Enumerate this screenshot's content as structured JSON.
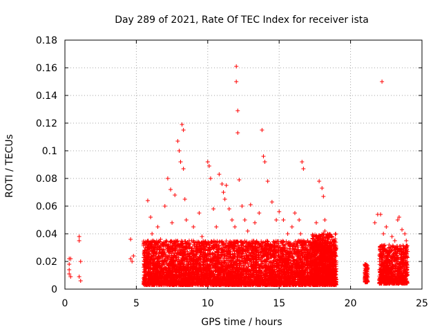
{
  "chart_data": {
    "type": "scatter",
    "title": "Day 289 of 2021, Rate Of TEC Index for receiver ista",
    "xlabel": "GPS time / hours",
    "ylabel": "ROTI / TECUs",
    "xlim": [
      0,
      25
    ],
    "ylim": [
      0,
      0.18
    ],
    "x_ticks": [
      "0",
      "5",
      "10",
      "15",
      "20",
      "25"
    ],
    "y_ticks": [
      "0",
      "0.02",
      "0.04",
      "0.06",
      "0.08",
      "0.1",
      "0.12",
      "0.14",
      "0.16",
      "0.18"
    ],
    "grid": true,
    "marker": "+",
    "series_color": "#ff0000",
    "series": [
      {
        "x": [
          0.3,
          0.3,
          0.3,
          0.3,
          0.4,
          0.4,
          1.0,
          1.0,
          1.1,
          1.0,
          1.1,
          4.6,
          4.6,
          4.7,
          4.8,
          5.6,
          5.8,
          6.0,
          6.1,
          6.3,
          6.5,
          6.7,
          6.9,
          7.0,
          7.2,
          7.4,
          7.5,
          7.7,
          7.9,
          8.0,
          8.1,
          8.2,
          8.3,
          8.3,
          8.4,
          8.5,
          8.7,
          9.0,
          9.2,
          9.4,
          9.6,
          9.8,
          10.0,
          10.1,
          10.2,
          10.4,
          10.6,
          10.8,
          11.0,
          11.1,
          11.2,
          11.3,
          11.5,
          11.7,
          11.9,
          12.0,
          12.0,
          12.1,
          12.1,
          12.2,
          12.4,
          12.6,
          12.8,
          13.0,
          13.3,
          13.6,
          13.8,
          13.9,
          14.0,
          14.2,
          14.5,
          14.8,
          15.0,
          15.3,
          15.6,
          15.9,
          16.1,
          16.4,
          16.5,
          16.6,
          16.7,
          17.6,
          17.8,
          18.0,
          18.1,
          18.2,
          18.2,
          18.4,
          18.7,
          18.8,
          18.9,
          21.0,
          21.1,
          21.7,
          21.9,
          22.1,
          22.2,
          22.3,
          22.5,
          22.7,
          22.9,
          23.1,
          23.3,
          23.4,
          23.6,
          23.8,
          23.9
        ],
        "y": [
          0.022,
          0.018,
          0.014,
          0.011,
          0.022,
          0.009,
          0.038,
          0.035,
          0.02,
          0.009,
          0.006,
          0.036,
          0.022,
          0.02,
          0.024,
          0.02,
          0.064,
          0.052,
          0.04,
          0.03,
          0.045,
          0.036,
          0.028,
          0.06,
          0.08,
          0.072,
          0.048,
          0.068,
          0.107,
          0.1,
          0.092,
          0.119,
          0.115,
          0.087,
          0.065,
          0.05,
          0.035,
          0.045,
          0.03,
          0.055,
          0.038,
          0.025,
          0.092,
          0.089,
          0.08,
          0.058,
          0.045,
          0.083,
          0.076,
          0.07,
          0.065,
          0.075,
          0.058,
          0.05,
          0.045,
          0.161,
          0.15,
          0.129,
          0.113,
          0.079,
          0.06,
          0.05,
          0.042,
          0.061,
          0.048,
          0.055,
          0.115,
          0.096,
          0.092,
          0.078,
          0.063,
          0.05,
          0.056,
          0.05,
          0.04,
          0.045,
          0.055,
          0.05,
          0.04,
          0.092,
          0.087,
          0.048,
          0.078,
          0.073,
          0.067,
          0.05,
          0.042,
          0.04,
          0.038,
          0.035,
          0.018,
          0.018,
          0.01,
          0.048,
          0.054,
          0.054,
          0.15,
          0.04,
          0.045,
          0.032,
          0.038,
          0.035,
          0.05,
          0.052,
          0.043,
          0.04,
          0.035
        ]
      }
    ],
    "dense_bands": [
      {
        "x_range": [
          5.5,
          19.0
        ],
        "y_range": [
          0.003,
          0.035
        ]
      },
      {
        "x_range": [
          17.3,
          19.0
        ],
        "y_range": [
          0.004,
          0.04
        ]
      },
      {
        "x_range": [
          21.0,
          21.2
        ],
        "y_range": [
          0.005,
          0.018
        ]
      },
      {
        "x_range": [
          22.0,
          24.0
        ],
        "y_range": [
          0.004,
          0.032
        ]
      }
    ]
  }
}
